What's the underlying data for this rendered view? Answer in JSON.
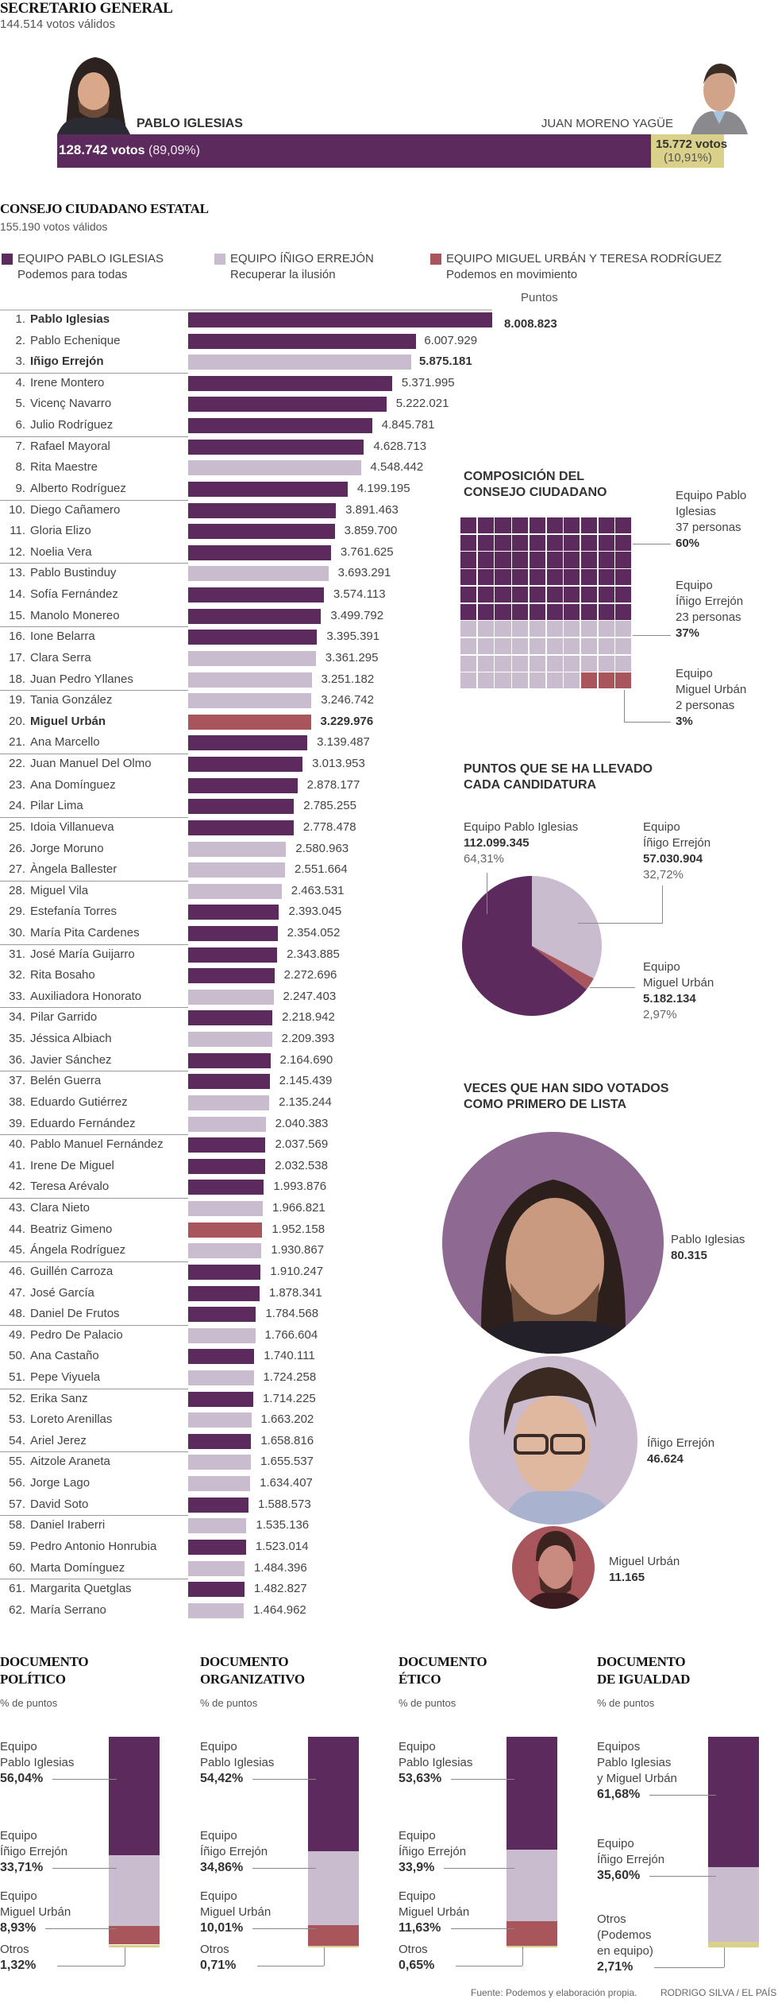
{
  "colors": {
    "iglesias": "#5c2a5c",
    "errejon": "#c9bccf",
    "urban": "#a8555c",
    "otros": "#d9d08a",
    "moreno": "#d9d08a"
  },
  "secretario": {
    "title": "SECRETARIO GENERAL",
    "subtitle": "144.514 votos válidos",
    "winner": {
      "name": "PABLO IGLESIAS",
      "votes": "128.742",
      "votes_word": "votos",
      "pct": "(89,09%)",
      "share": 89.09,
      "photo": "pablo-iglesias-photo"
    },
    "runner": {
      "name": "JUAN MORENO YAGÜE",
      "votes": "15.772 votos",
      "pct": "(10,91%)",
      "share": 10.91,
      "photo": "juan-moreno-photo"
    }
  },
  "consejo": {
    "title": "CONSEJO CIUDADANO ESTATAL",
    "subtitle": "155.190 votos válidos",
    "legend": [
      {
        "team": "iglesias",
        "label": "EQUIPO PABLO IGLESIAS",
        "slogan": "Podemos para todas"
      },
      {
        "team": "errejon",
        "label": "EQUIPO ÍÑIGO ERREJÓN",
        "slogan": "Recuperar la ilusión"
      },
      {
        "team": "urban",
        "label": "EQUIPO MIGUEL URBÁN Y TERESA RODRÍGUEZ",
        "slogan": "Podemos en movimiento"
      }
    ],
    "points_header": "Puntos"
  },
  "composicion": {
    "title_1": "COMPOSICIÓN DEL",
    "title_2": "CONSEJO CIUDADANO",
    "groups": [
      {
        "team": "iglesias",
        "l1": "Equipo Pablo",
        "l2": "Iglesias",
        "people": "37 personas",
        "pct": "60%",
        "squares": 60
      },
      {
        "team": "errejon",
        "l1": "Equipo",
        "l2": "Íñigo Errejón",
        "people": "23 personas",
        "pct": "37%",
        "squares": 37
      },
      {
        "team": "urban",
        "l1": "Equipo",
        "l2": "Miguel Urbán",
        "people": "2 personas",
        "pct": "3%",
        "squares": 3
      }
    ]
  },
  "puntos": {
    "title_1": "PUNTOS QUE SE HA LLEVADO",
    "title_2": "CADA CANDIDATURA",
    "iglesias": {
      "l1": "Equipo Pablo Iglesias",
      "value": "112.099.345",
      "pct": "64,31%"
    },
    "errejon": {
      "l1": "Equipo",
      "l2": "Íñigo Errejón",
      "value": "57.030.904",
      "pct": "32,72%"
    },
    "urban": {
      "l1": "Equipo",
      "l2": "Miguel Urbán",
      "value": "5.182.134",
      "pct": "2,97%"
    }
  },
  "primero": {
    "title_1": "VECES QUE HAN SIDO VOTADOS",
    "title_2": "COMO PRIMERO DE LISTA",
    "people": [
      {
        "name": "Pablo Iglesias",
        "value": "80.315"
      },
      {
        "name": "Íñigo Errejón",
        "value": "46.624"
      },
      {
        "name": "Miguel Urbán",
        "value": "11.165"
      }
    ]
  },
  "documentos_subtitle": "% de puntos",
  "footer": {
    "source": "Fuente: Podemos y elaboración propia.",
    "credit": "RODRIGO SILVA / EL PAÍS"
  },
  "chart_data": [
    {
      "type": "bar",
      "title": "SECRETARIO GENERAL",
      "categories": [
        "Pablo Iglesias",
        "Juan Moreno Yagüe"
      ],
      "values": [
        128742,
        15772
      ],
      "percent": [
        89.09,
        10.91
      ]
    },
    {
      "type": "bar",
      "title": "CONSEJO CIUDADANO ESTATAL",
      "xlabel": "Puntos",
      "xlim": [
        0,
        8008823
      ],
      "rows": [
        {
          "rank": 1,
          "name": "Pablo Iglesias",
          "points": 8008823,
          "label": "8.008.823",
          "team": "iglesias",
          "bold": true
        },
        {
          "rank": 2,
          "name": "Pablo Echenique",
          "points": 6007929,
          "label": "6.007.929",
          "team": "iglesias"
        },
        {
          "rank": 3,
          "name": "Iñigo Errejón",
          "points": 5875181,
          "label": "5.875.181",
          "team": "errejon",
          "bold": true
        },
        {
          "rank": 4,
          "name": "Irene Montero",
          "points": 5371995,
          "label": "5.371.995",
          "team": "iglesias"
        },
        {
          "rank": 5,
          "name": "Vicenç Navarro",
          "points": 5222021,
          "label": "5.222.021",
          "team": "iglesias"
        },
        {
          "rank": 6,
          "name": "Julio Rodríguez",
          "points": 4845781,
          "label": "4.845.781",
          "team": "iglesias"
        },
        {
          "rank": 7,
          "name": "Rafael Mayoral",
          "points": 4628713,
          "label": "4.628.713",
          "team": "iglesias"
        },
        {
          "rank": 8,
          "name": "Rita Maestre",
          "points": 4548442,
          "label": "4.548.442",
          "team": "errejon"
        },
        {
          "rank": 9,
          "name": "Alberto Rodríguez",
          "points": 4199195,
          "label": "4.199.195",
          "team": "iglesias"
        },
        {
          "rank": 10,
          "name": "Diego Cañamero",
          "points": 3891463,
          "label": "3.891.463",
          "team": "iglesias"
        },
        {
          "rank": 11,
          "name": "Gloria Elizo",
          "points": 3859700,
          "label": "3.859.700",
          "team": "iglesias"
        },
        {
          "rank": 12,
          "name": "Noelia Vera",
          "points": 3761625,
          "label": "3.761.625",
          "team": "iglesias"
        },
        {
          "rank": 13,
          "name": "Pablo Bustinduy",
          "points": 3693291,
          "label": "3.693.291",
          "team": "errejon"
        },
        {
          "rank": 14,
          "name": "Sofía Fernández",
          "points": 3574113,
          "label": "3.574.113",
          "team": "iglesias"
        },
        {
          "rank": 15,
          "name": "Manolo Monereo",
          "points": 3499792,
          "label": "3.499.792",
          "team": "iglesias"
        },
        {
          "rank": 16,
          "name": "Ione Belarra",
          "points": 3395391,
          "label": "3.395.391",
          "team": "iglesias"
        },
        {
          "rank": 17,
          "name": "Clara Serra",
          "points": 3361295,
          "label": "3.361.295",
          "team": "errejon"
        },
        {
          "rank": 18,
          "name": "Juan Pedro Yllanes",
          "points": 3251182,
          "label": "3.251.182",
          "team": "errejon"
        },
        {
          "rank": 19,
          "name": "Tania González",
          "points": 3246742,
          "label": "3.246.742",
          "team": "errejon"
        },
        {
          "rank": 20,
          "name": "Miguel Urbán",
          "points": 3229976,
          "label": "3.229.976",
          "team": "urban",
          "bold": true
        },
        {
          "rank": 21,
          "name": "Ana Marcello",
          "points": 3139487,
          "label": "3.139.487",
          "team": "iglesias"
        },
        {
          "rank": 22,
          "name": "Juan Manuel Del Olmo",
          "points": 3013953,
          "label": "3.013.953",
          "team": "iglesias"
        },
        {
          "rank": 23,
          "name": "Ana Domínguez",
          "points": 2878177,
          "label": "2.878.177",
          "team": "iglesias"
        },
        {
          "rank": 24,
          "name": "Pilar Lima",
          "points": 2785255,
          "label": "2.785.255",
          "team": "iglesias"
        },
        {
          "rank": 25,
          "name": "Idoia Villanueva",
          "points": 2778478,
          "label": "2.778.478",
          "team": "iglesias"
        },
        {
          "rank": 26,
          "name": "Jorge Moruno",
          "points": 2580963,
          "label": "2.580.963",
          "team": "errejon"
        },
        {
          "rank": 27,
          "name": "Àngela Ballester",
          "points": 2551664,
          "label": "2.551.664",
          "team": "errejon"
        },
        {
          "rank": 28,
          "name": "Miguel Vila",
          "points": 2463531,
          "label": "2.463.531",
          "team": "errejon"
        },
        {
          "rank": 29,
          "name": "Estefanía Torres",
          "points": 2393045,
          "label": "2.393.045",
          "team": "iglesias"
        },
        {
          "rank": 30,
          "name": "María Pita Cardenes",
          "points": 2354052,
          "label": "2.354.052",
          "team": "iglesias"
        },
        {
          "rank": 31,
          "name": "José María Guijarro",
          "points": 2343885,
          "label": "2.343.885",
          "team": "iglesias"
        },
        {
          "rank": 32,
          "name": "Rita Bosaho",
          "points": 2272696,
          "label": "2.272.696",
          "team": "iglesias"
        },
        {
          "rank": 33,
          "name": "Auxiliadora Honorato",
          "points": 2247403,
          "label": "2.247.403",
          "team": "errejon"
        },
        {
          "rank": 34,
          "name": "Pilar Garrido",
          "points": 2218942,
          "label": "2.218.942",
          "team": "iglesias"
        },
        {
          "rank": 35,
          "name": "Jéssica Albiach",
          "points": 2209393,
          "label": "2.209.393",
          "team": "errejon"
        },
        {
          "rank": 36,
          "name": "Javier Sánchez",
          "points": 2164690,
          "label": "2.164.690",
          "team": "iglesias"
        },
        {
          "rank": 37,
          "name": "Belén Guerra",
          "points": 2145439,
          "label": "2.145.439",
          "team": "iglesias"
        },
        {
          "rank": 38,
          "name": "Eduardo Gutiérrez",
          "points": 2135244,
          "label": "2.135.244",
          "team": "errejon"
        },
        {
          "rank": 39,
          "name": "Eduardo Fernández",
          "points": 2040383,
          "label": "2.040.383",
          "team": "errejon"
        },
        {
          "rank": 40,
          "name": "Pablo Manuel Fernández",
          "points": 2037569,
          "label": "2.037.569",
          "team": "iglesias"
        },
        {
          "rank": 41,
          "name": "Irene De Miguel",
          "points": 2032538,
          "label": "2.032.538",
          "team": "iglesias"
        },
        {
          "rank": 42,
          "name": "Teresa Arévalo",
          "points": 1993876,
          "label": "1.993.876",
          "team": "iglesias"
        },
        {
          "rank": 43,
          "name": "Clara Nieto",
          "points": 1966821,
          "label": "1.966.821",
          "team": "errejon"
        },
        {
          "rank": 44,
          "name": "Beatriz Gimeno",
          "points": 1952158,
          "label": "1.952.158",
          "team": "urban"
        },
        {
          "rank": 45,
          "name": "Ángela Rodríguez",
          "points": 1930867,
          "label": "1.930.867",
          "team": "errejon"
        },
        {
          "rank": 46,
          "name": "Guillén Carroza",
          "points": 1910247,
          "label": "1.910.247",
          "team": "iglesias"
        },
        {
          "rank": 47,
          "name": "José García",
          "points": 1878341,
          "label": "1.878.341",
          "team": "iglesias"
        },
        {
          "rank": 48,
          "name": "Daniel De Frutos",
          "points": 1784568,
          "label": "1.784.568",
          "team": "iglesias"
        },
        {
          "rank": 49,
          "name": "Pedro De Palacio",
          "points": 1766604,
          "label": "1.766.604",
          "team": "errejon"
        },
        {
          "rank": 50,
          "name": "Ana Castaño",
          "points": 1740111,
          "label": "1.740.111",
          "team": "iglesias"
        },
        {
          "rank": 51,
          "name": "Pepe Viyuela",
          "points": 1724258,
          "label": "1.724.258",
          "team": "errejon"
        },
        {
          "rank": 52,
          "name": "Erika Sanz",
          "points": 1714225,
          "label": "1.714.225",
          "team": "iglesias"
        },
        {
          "rank": 53,
          "name": "Loreto Arenillas",
          "points": 1663202,
          "label": "1.663.202",
          "team": "errejon"
        },
        {
          "rank": 54,
          "name": "Ariel Jerez",
          "points": 1658816,
          "label": "1.658.816",
          "team": "iglesias"
        },
        {
          "rank": 55,
          "name": "Aitzole Araneta",
          "points": 1655537,
          "label": "1.655.537",
          "team": "errejon"
        },
        {
          "rank": 56,
          "name": "Jorge Lago",
          "points": 1634407,
          "label": "1.634.407",
          "team": "errejon"
        },
        {
          "rank": 57,
          "name": "David Soto",
          "points": 1588573,
          "label": "1.588.573",
          "team": "iglesias"
        },
        {
          "rank": 58,
          "name": "Daniel Iraberri",
          "points": 1535136,
          "label": "1.535.136",
          "team": "errejon"
        },
        {
          "rank": 59,
          "name": "Pedro Antonio Honrubia",
          "points": 1523014,
          "label": "1.523.014",
          "team": "iglesias"
        },
        {
          "rank": 60,
          "name": "Marta Domínguez",
          "points": 1484396,
          "label": "1.484.396",
          "team": "errejon"
        },
        {
          "rank": 61,
          "name": "Margarita Quetglas",
          "points": 1482827,
          "label": "1.482.827",
          "team": "iglesias"
        },
        {
          "rank": 62,
          "name": "María Serrano",
          "points": 1464962,
          "label": "1.464.962",
          "team": "errejon"
        }
      ]
    },
    {
      "type": "heatmap",
      "title": "COMPOSICIÓN DEL CONSEJO CIUDADANO",
      "grid": [
        10,
        10
      ],
      "series": [
        {
          "name": "Equipo Pablo Iglesias",
          "values": [
            60
          ],
          "people": 37
        },
        {
          "name": "Equipo Íñigo Errejón",
          "values": [
            37
          ],
          "people": 23
        },
        {
          "name": "Equipo Miguel Urbán",
          "values": [
            3
          ],
          "people": 2
        }
      ]
    },
    {
      "type": "pie",
      "title": "PUNTOS QUE SE HA LLEVADO CADA CANDIDATURA",
      "categories": [
        "Equipo Pablo Iglesias",
        "Equipo Íñigo Errejón",
        "Equipo Miguel Urbán"
      ],
      "values": [
        112099345,
        57030904,
        5182134
      ],
      "percent": [
        64.31,
        32.72,
        2.97
      ]
    },
    {
      "type": "bar",
      "title": "VECES QUE HAN SIDO VOTADOS COMO PRIMERO DE LISTA",
      "categories": [
        "Pablo Iglesias",
        "Íñigo Errejón",
        "Miguel Urbán"
      ],
      "values": [
        80315,
        46624,
        11165
      ]
    },
    {
      "type": "bar",
      "stacked": true,
      "ylabel": "% de puntos",
      "ylim": [
        0,
        100
      ],
      "documents": [
        {
          "title_1": "DOCUMENTO",
          "title_2": "POLÍTICO",
          "segments": [
            {
              "team": "iglesias",
              "l1": "Equipo",
              "l2": "Pablo Iglesias",
              "value": 56.04,
              "label": "56,04%"
            },
            {
              "team": "errejon",
              "l1": "Equipo",
              "l2": "Íñigo Errejón",
              "value": 33.71,
              "label": "33,71%"
            },
            {
              "team": "urban",
              "l1": "Equipo",
              "l2": "Miguel Urbán",
              "value": 8.93,
              "label": "8,93%"
            },
            {
              "team": "otros",
              "l1": "Otros",
              "value": 1.32,
              "label": "1,32%"
            }
          ]
        },
        {
          "title_1": "DOCUMENTO",
          "title_2": "ORGANIZATIVO",
          "segments": [
            {
              "team": "iglesias",
              "l1": "Equipo",
              "l2": "Pablo Iglesias",
              "value": 54.42,
              "label": "54,42%"
            },
            {
              "team": "errejon",
              "l1": "Equipo",
              "l2": "Íñigo Errejón",
              "value": 34.86,
              "label": "34,86%"
            },
            {
              "team": "urban",
              "l1": "Equipo",
              "l2": "Miguel Urbán",
              "value": 10.01,
              "label": "10,01%"
            },
            {
              "team": "otros",
              "l1": "Otros",
              "value": 0.71,
              "label": "0,71%"
            }
          ]
        },
        {
          "title_1": "DOCUMENTO",
          "title_2": "ÉTICO",
          "segments": [
            {
              "team": "iglesias",
              "l1": "Equipo",
              "l2": "Pablo Iglesias",
              "value": 53.63,
              "label": "53,63%"
            },
            {
              "team": "errejon",
              "l1": "Equipo",
              "l2": "Íñigo Errejón",
              "value": 33.9,
              "label": "33,9%"
            },
            {
              "team": "urban",
              "l1": "Equipo",
              "l2": "Miguel Urbán",
              "value": 11.63,
              "label": "11,63%"
            },
            {
              "team": "otros",
              "l1": "Otros",
              "value": 0.65,
              "label": "0,65%"
            }
          ]
        },
        {
          "title_1": "DOCUMENTO",
          "title_2": "DE IGUALDAD",
          "segments": [
            {
              "team": "iglesias",
              "l1": "Equipos",
              "l2": "Pablo Iglesias",
              "l3": "y Miguel Urbán",
              "value": 61.68,
              "label": "61,68%"
            },
            {
              "team": "errejon",
              "l1": "Equipo",
              "l2": "Íñigo Errejón",
              "value": 35.6,
              "label": "35,60%"
            },
            {
              "team": "otros",
              "l1": "Otros",
              "l2": "(Podemos",
              "l3": "en equipo)",
              "value": 2.71,
              "label": "2,71%"
            }
          ]
        }
      ]
    }
  ]
}
